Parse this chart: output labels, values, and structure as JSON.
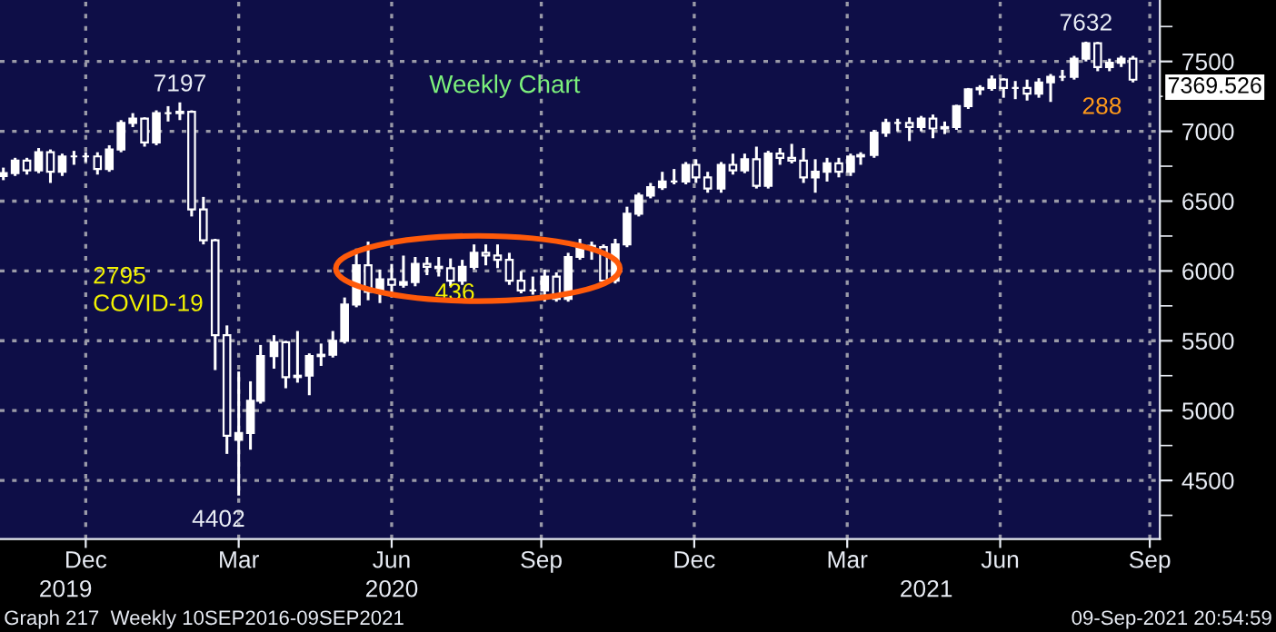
{
  "chart_data": {
    "type": "candlestick",
    "title": "Weekly Chart",
    "color": "#ffffff",
    "grid": true,
    "x": [
      "2019-11-08",
      "2019-11-15",
      "2019-11-22",
      "2019-11-29",
      "2019-12-06",
      "2019-12-13",
      "2019-12-20",
      "2019-12-27",
      "2020-01-03",
      "2020-01-10",
      "2020-01-17",
      "2020-01-24",
      "2020-01-31",
      "2020-02-07",
      "2020-02-14",
      "2020-02-21",
      "2020-02-28",
      "2020-03-06",
      "2020-03-13",
      "2020-03-20",
      "2020-03-27",
      "2020-04-03",
      "2020-04-09",
      "2020-04-17",
      "2020-04-24",
      "2020-05-01",
      "2020-05-08",
      "2020-05-15",
      "2020-05-22",
      "2020-05-29",
      "2020-06-05",
      "2020-06-12",
      "2020-06-19",
      "2020-06-26",
      "2020-07-03",
      "2020-07-10",
      "2020-07-17",
      "2020-07-24",
      "2020-07-31",
      "2020-08-07",
      "2020-08-14",
      "2020-08-21",
      "2020-08-28",
      "2020-09-04",
      "2020-09-11",
      "2020-09-18",
      "2020-09-25",
      "2020-10-02",
      "2020-10-09",
      "2020-10-16",
      "2020-10-23",
      "2020-10-30",
      "2020-11-06",
      "2020-11-13",
      "2020-11-20",
      "2020-11-27",
      "2020-12-04",
      "2020-12-11",
      "2020-12-18",
      "2020-12-24",
      "2020-12-31",
      "2021-01-08",
      "2021-01-15",
      "2021-01-22",
      "2021-01-29",
      "2021-02-05",
      "2021-02-12",
      "2021-02-19",
      "2021-02-26",
      "2021-03-05",
      "2021-03-12",
      "2021-03-19",
      "2021-03-26",
      "2021-04-01",
      "2021-04-09",
      "2021-04-16",
      "2021-04-23",
      "2021-04-30",
      "2021-05-07",
      "2021-05-14",
      "2021-05-21",
      "2021-05-28",
      "2021-06-04",
      "2021-06-11",
      "2021-06-18",
      "2021-06-25",
      "2021-07-02",
      "2021-07-09",
      "2021-07-16",
      "2021-07-23",
      "2021-07-30",
      "2021-08-06",
      "2021-08-13",
      "2021-08-20",
      "2021-08-27",
      "2021-09-03",
      "2021-09-10"
    ],
    "ohlc": [
      [
        6680,
        6730,
        6660,
        6700
      ],
      [
        6700,
        6800,
        6690,
        6790
      ],
      [
        6790,
        6800,
        6700,
        6720
      ],
      [
        6720,
        6870,
        6710,
        6850
      ],
      [
        6850,
        6860,
        6640,
        6710
      ],
      [
        6710,
        6830,
        6690,
        6820
      ],
      [
        6820,
        6850,
        6770,
        6820
      ],
      [
        6820,
        6840,
        6790,
        6820
      ],
      [
        6820,
        6840,
        6700,
        6730
      ],
      [
        6730,
        6890,
        6720,
        6870
      ],
      [
        6870,
        7070,
        6860,
        7060
      ],
      [
        7060,
        7120,
        7040,
        7090
      ],
      [
        7090,
        7090,
        6900,
        6920
      ],
      [
        6920,
        7140,
        6910,
        7130
      ],
      [
        7130,
        7170,
        7080,
        7130
      ],
      [
        7130,
        7197,
        7090,
        7140
      ],
      [
        7140,
        7140,
        6400,
        6440
      ],
      [
        6440,
        6520,
        6200,
        6220
      ],
      [
        6220,
        6220,
        5300,
        5540
      ],
      [
        5540,
        5600,
        4700,
        4820
      ],
      [
        4790,
        5270,
        4402,
        4840
      ],
      [
        4840,
        5200,
        4730,
        5070
      ],
      [
        5070,
        5460,
        5060,
        5390
      ],
      [
        5390,
        5530,
        5310,
        5490
      ],
      [
        5490,
        5490,
        5170,
        5240
      ],
      [
        5240,
        5560,
        5210,
        5250
      ],
      [
        5250,
        5400,
        5120,
        5390
      ],
      [
        5390,
        5470,
        5330,
        5400
      ],
      [
        5400,
        5560,
        5390,
        5500
      ],
      [
        5500,
        5800,
        5490,
        5760
      ],
      [
        5760,
        6150,
        5750,
        6040
      ],
      [
        6040,
        6200,
        5800,
        5850
      ],
      [
        5850,
        6000,
        5780,
        5940
      ],
      [
        5940,
        6040,
        5820,
        5900
      ],
      [
        5900,
        6100,
        5890,
        5920
      ],
      [
        5920,
        6090,
        5900,
        6050
      ],
      [
        6050,
        6090,
        5980,
        6030
      ],
      [
        6030,
        6090,
        5970,
        6020
      ],
      [
        6020,
        6080,
        5900,
        5930
      ],
      [
        5930,
        6070,
        5910,
        6030
      ],
      [
        6030,
        6180,
        6020,
        6130
      ],
      [
        6130,
        6180,
        6050,
        6110
      ],
      [
        6110,
        6180,
        6030,
        6080
      ],
      [
        6080,
        6120,
        5910,
        5930
      ],
      [
        5930,
        5990,
        5850,
        5860
      ],
      [
        5860,
        5950,
        5840,
        5860
      ],
      [
        5860,
        6000,
        5790,
        5960
      ],
      [
        5960,
        5980,
        5790,
        5800
      ],
      [
        5800,
        6120,
        5790,
        6100
      ],
      [
        6100,
        6220,
        6090,
        6180
      ],
      [
        6180,
        6200,
        6090,
        6170
      ],
      [
        6170,
        6180,
        5920,
        5930
      ],
      [
        5930,
        6220,
        5920,
        6190
      ],
      [
        6190,
        6450,
        6180,
        6410
      ],
      [
        6410,
        6550,
        6400,
        6540
      ],
      [
        6540,
        6620,
        6530,
        6600
      ],
      [
        6600,
        6700,
        6590,
        6640
      ],
      [
        6640,
        6720,
        6630,
        6640
      ],
      [
        6640,
        6770,
        6630,
        6760
      ],
      [
        6760,
        6790,
        6640,
        6670
      ],
      [
        6670,
        6700,
        6570,
        6590
      ],
      [
        6590,
        6770,
        6570,
        6760
      ],
      [
        6760,
        6830,
        6700,
        6720
      ],
      [
        6720,
        6830,
        6710,
        6800
      ],
      [
        6800,
        6880,
        6600,
        6610
      ],
      [
        6610,
        6850,
        6600,
        6840
      ],
      [
        6840,
        6870,
        6770,
        6810
      ],
      [
        6810,
        6900,
        6780,
        6790
      ],
      [
        6790,
        6870,
        6640,
        6670
      ],
      [
        6670,
        6790,
        6570,
        6710
      ],
      [
        6710,
        6800,
        6650,
        6770
      ],
      [
        6770,
        6800,
        6680,
        6710
      ],
      [
        6710,
        6830,
        6690,
        6820
      ],
      [
        6820,
        6840,
        6770,
        6830
      ],
      [
        6830,
        7000,
        6820,
        6990
      ],
      [
        6990,
        7080,
        6970,
        7060
      ],
      [
        7060,
        7080,
        7010,
        7060
      ],
      [
        7060,
        7090,
        6940,
        7030
      ],
      [
        7030,
        7100,
        7010,
        7090
      ],
      [
        7090,
        7110,
        6960,
        7020
      ],
      [
        7020,
        7060,
        6990,
        7030
      ],
      [
        7030,
        7180,
        7020,
        7180
      ],
      [
        7180,
        7300,
        7170,
        7300
      ],
      [
        7300,
        7320,
        7270,
        7310
      ],
      [
        7310,
        7390,
        7300,
        7370
      ],
      [
        7370,
        7370,
        7250,
        7310
      ],
      [
        7310,
        7350,
        7240,
        7310
      ],
      [
        7310,
        7360,
        7230,
        7270
      ],
      [
        7270,
        7370,
        7250,
        7350
      ],
      [
        7350,
        7400,
        7220,
        7390
      ],
      [
        7390,
        7430,
        7370,
        7390
      ],
      [
        7390,
        7530,
        7380,
        7520
      ],
      [
        7520,
        7632,
        7510,
        7630
      ],
      [
        7630,
        7630,
        7440,
        7460
      ],
      [
        7460,
        7510,
        7440,
        7490
      ],
      [
        7490,
        7530,
        7470,
        7520
      ],
      [
        7520,
        7530,
        7360,
        7369.526
      ]
    ],
    "xlim": [
      "2019-11-06",
      "2021-09-26"
    ],
    "xticks": [
      {
        "value": "2019-12-27",
        "label": "Dec"
      },
      {
        "value": "2020-03-27",
        "label": "Mar"
      },
      {
        "value": "2020-06-26",
        "label": "Jun"
      },
      {
        "value": "2020-09-23",
        "label": "Sep"
      },
      {
        "value": "2020-12-23",
        "label": "Dec"
      },
      {
        "value": "2021-03-24",
        "label": "Mar"
      },
      {
        "value": "2021-06-23",
        "label": "Jun"
      },
      {
        "value": "2021-09-20",
        "label": "Sep"
      }
    ],
    "x2lim": [
      "2019-11-06",
      "2021-09-26"
    ],
    "x2ticks": [
      {
        "value": "2019-12-15",
        "label": "2019"
      },
      {
        "value": "2020-06-26",
        "label": "2020"
      },
      {
        "value": "2021-05-10",
        "label": "2021"
      }
    ],
    "ylim": [
      4080,
      7940
    ],
    "yticks": [
      4500,
      5000,
      5500,
      6000,
      6500,
      7000,
      7500
    ],
    "annotations": [
      {
        "text": "7197",
        "x": "2020-02-21",
        "y": 7197
      },
      {
        "text": "4402",
        "x": "2020-03-27",
        "y": 4402
      },
      "2795\nCOVID-19",
      "436",
      {
        "text": "7632",
        "x": "2021-08-13",
        "y": 7632
      },
      "288",
      {
        "text": "7369.526",
        "x": "2021-09-10",
        "y": 7369.526
      },
      "Graph 217  Weekly 10SEP2016-09SEP2021",
      "09-Sep-2021 20:54:59"
    ]
  }
}
